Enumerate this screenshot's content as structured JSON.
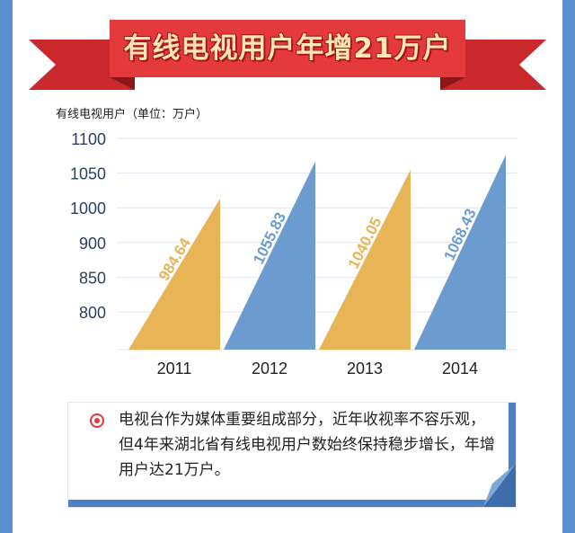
{
  "banner": {
    "title": "有线电视用户年增21万户",
    "color": "#e53a3b"
  },
  "chart_data": {
    "type": "bar",
    "ylabel": "有线电视用户（单位：万户）",
    "yticks": [
      1100,
      1050,
      1000,
      900,
      850,
      800
    ],
    "categories": [
      "2011",
      "2012",
      "2013",
      "2014"
    ],
    "values": [
      984.64,
      1055.83,
      1040.05,
      1068.43
    ],
    "value_labels": [
      "984.64",
      "1055.83",
      "1040.05",
      "1068.43"
    ],
    "colors": [
      "#e8b556",
      "#6c9bd0",
      "#e8b556",
      "#6c9bd0"
    ],
    "grid": true,
    "legend": "none"
  },
  "note": {
    "text": "电视台作为媒体重要组成部分，近年收视率不容乐观，但4年来湖北省有线电视用户数始终保持稳步增长，年增用户达21万户。",
    "bullet_color": "#e53a3b",
    "accent_color": "#4f7fbf"
  }
}
